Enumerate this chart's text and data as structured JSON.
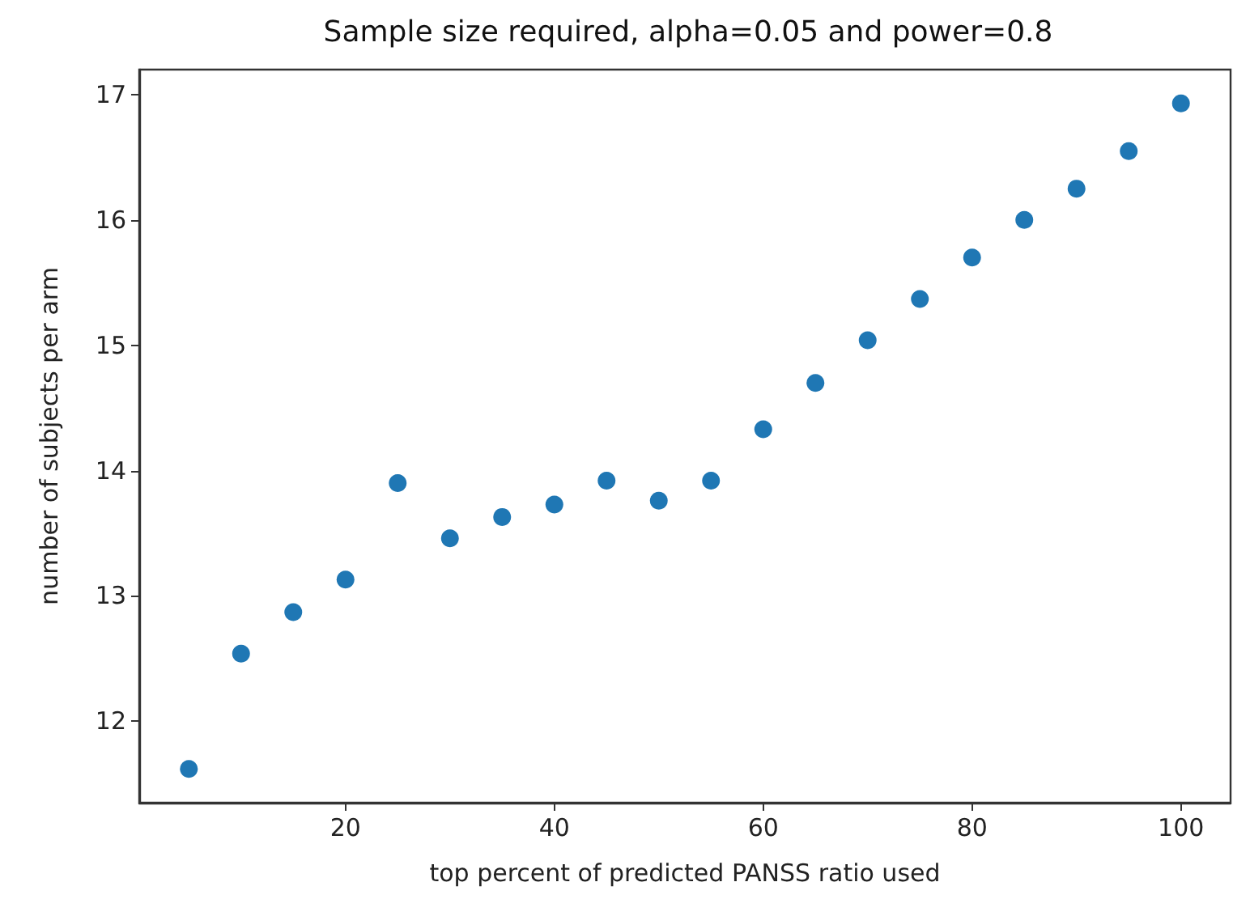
{
  "chart_data": {
    "type": "scatter",
    "title": "Sample size required, alpha=0.05 and power=0.8",
    "xlabel": "top percent of predicted PANSS ratio used",
    "ylabel": "number of subjects per arm",
    "x": [
      5,
      10,
      15,
      20,
      25,
      30,
      35,
      40,
      45,
      50,
      55,
      60,
      65,
      70,
      75,
      80,
      85,
      90,
      95,
      100
    ],
    "series": [
      {
        "color": "#1f77b4",
        "values": [
          11.62,
          12.54,
          12.87,
          13.13,
          13.9,
          13.46,
          13.63,
          13.73,
          13.92,
          13.76,
          13.92,
          14.33,
          14.7,
          15.04,
          15.37,
          15.7,
          16.0,
          16.25,
          16.55,
          16.93
        ]
      }
    ],
    "xlim": [
      0.25,
      104.75
    ],
    "xticks": [
      20,
      40,
      60,
      80,
      100
    ],
    "ylim": [
      11.35,
      17.2
    ],
    "yticks": [
      12,
      13,
      14,
      15,
      16,
      17
    ],
    "marker": "circle",
    "grid": false
  }
}
